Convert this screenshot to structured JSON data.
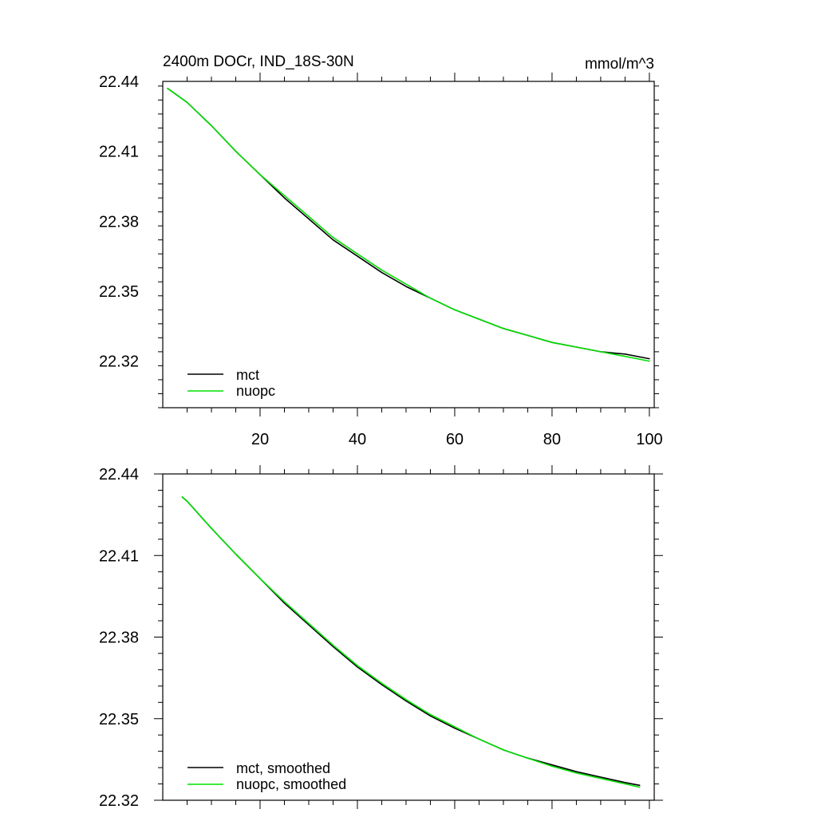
{
  "chart_data": [
    {
      "type": "line",
      "title": "2400m DOCr, IND_18S-30N",
      "units": "mmol/m^3",
      "xlim": [
        0,
        101
      ],
      "ylim": [
        22.3,
        22.44
      ],
      "xticks": [
        20,
        40,
        60,
        80,
        100
      ],
      "yticks": [
        22.32,
        22.35,
        22.38,
        22.41,
        22.44
      ],
      "xtick_labels": [
        "20",
        "40",
        "60",
        "80",
        "100"
      ],
      "ytick_labels": [
        "22.32",
        "22.35",
        "22.38",
        "22.41",
        "22.44"
      ],
      "legend_position": "bottom-left",
      "x": [
        1,
        5,
        10,
        15,
        20,
        25,
        30,
        35,
        40,
        45,
        50,
        55,
        60,
        65,
        70,
        75,
        80,
        85,
        90,
        95,
        100
      ],
      "series": [
        {
          "name": "mct",
          "color": "#000000",
          "values": [
            22.437,
            22.431,
            22.421,
            22.41,
            22.4,
            22.39,
            22.381,
            22.372,
            22.365,
            22.358,
            22.352,
            22.347,
            22.342,
            22.338,
            22.334,
            22.331,
            22.328,
            22.326,
            22.324,
            22.323,
            22.321
          ]
        },
        {
          "name": "nuopc",
          "color": "#00e000",
          "values": [
            22.437,
            22.431,
            22.421,
            22.41,
            22.4,
            22.391,
            22.382,
            22.373,
            22.366,
            22.359,
            22.353,
            22.347,
            22.342,
            22.338,
            22.334,
            22.331,
            22.328,
            22.326,
            22.324,
            22.322,
            22.32
          ]
        }
      ]
    },
    {
      "type": "line",
      "xlim": [
        0,
        101
      ],
      "ylim": [
        22.32,
        22.44
      ],
      "xticks": [
        20,
        40,
        60,
        80,
        100
      ],
      "yticks": [
        22.32,
        22.35,
        22.38,
        22.41,
        22.44
      ],
      "ytick_labels": [
        "22.32",
        "22.35",
        "22.38",
        "22.41",
        "22.44"
      ],
      "legend_position": "bottom-left",
      "x": [
        4,
        5,
        10,
        15,
        20,
        25,
        30,
        35,
        40,
        45,
        50,
        55,
        60,
        65,
        70,
        75,
        80,
        85,
        90,
        95,
        98
      ],
      "series": [
        {
          "name": "mct, smoothed",
          "color": "#000000",
          "values": [
            22.4315,
            22.43,
            22.42,
            22.4105,
            22.4015,
            22.3925,
            22.3845,
            22.3765,
            22.369,
            22.3625,
            22.3565,
            22.351,
            22.3465,
            22.3425,
            22.3385,
            22.3355,
            22.333,
            22.3305,
            22.3285,
            22.3265,
            22.3255
          ]
        },
        {
          "name": "nuopc, smoothed",
          "color": "#00e000",
          "values": [
            22.4315,
            22.43,
            22.42,
            22.4105,
            22.4015,
            22.393,
            22.385,
            22.377,
            22.3695,
            22.363,
            22.357,
            22.3515,
            22.347,
            22.3425,
            22.3385,
            22.3355,
            22.3325,
            22.33,
            22.328,
            22.326,
            22.3248
          ]
        }
      ]
    }
  ]
}
